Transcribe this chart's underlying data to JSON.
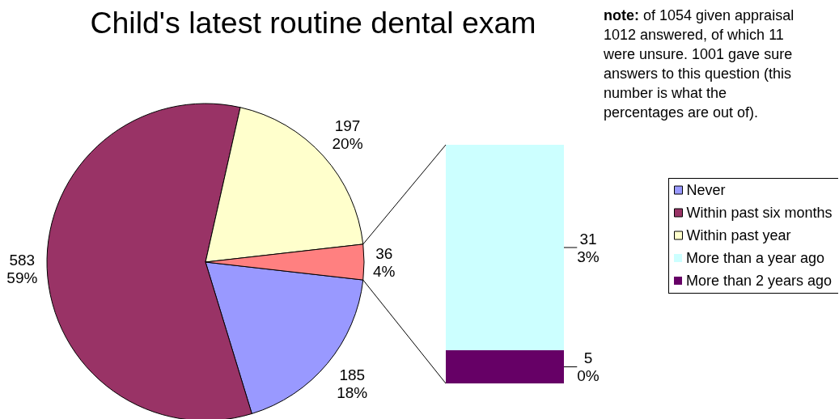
{
  "chart_data": [
    {
      "type": "pie",
      "title": "Child's latest routine dental exam",
      "annotations": [
        "note: of 1054 given appraisal 1012 answered, of which 11 were unsure. 1001 gave sure answers to this question (this number is what the percentages are out of)."
      ],
      "categories": [
        "Never",
        "Within past six months",
        "Within past year",
        null
      ],
      "values": [
        185,
        583,
        197,
        36
      ],
      "colors": [
        "#9999ff",
        "#993366",
        "#ffffcc",
        "#ff8080"
      ],
      "value_labels": [
        "185\n18%",
        "583\n59%",
        "197\n20%",
        "36\n4%"
      ],
      "legend": "right"
    },
    {
      "type": "bar",
      "stacked": true,
      "categories": [
        null
      ],
      "tick_labels": false,
      "series": [
        {
          "name": "More than 2 years ago",
          "color": "#660066",
          "values": [
            5
          ],
          "value_labels": [
            "5\n0%"
          ]
        },
        {
          "name": "More than a year ago",
          "color": "#ccffff",
          "values": [
            31
          ],
          "value_labels": [
            "31\n3%"
          ]
        }
      ],
      "legend": "right"
    }
  ]
}
